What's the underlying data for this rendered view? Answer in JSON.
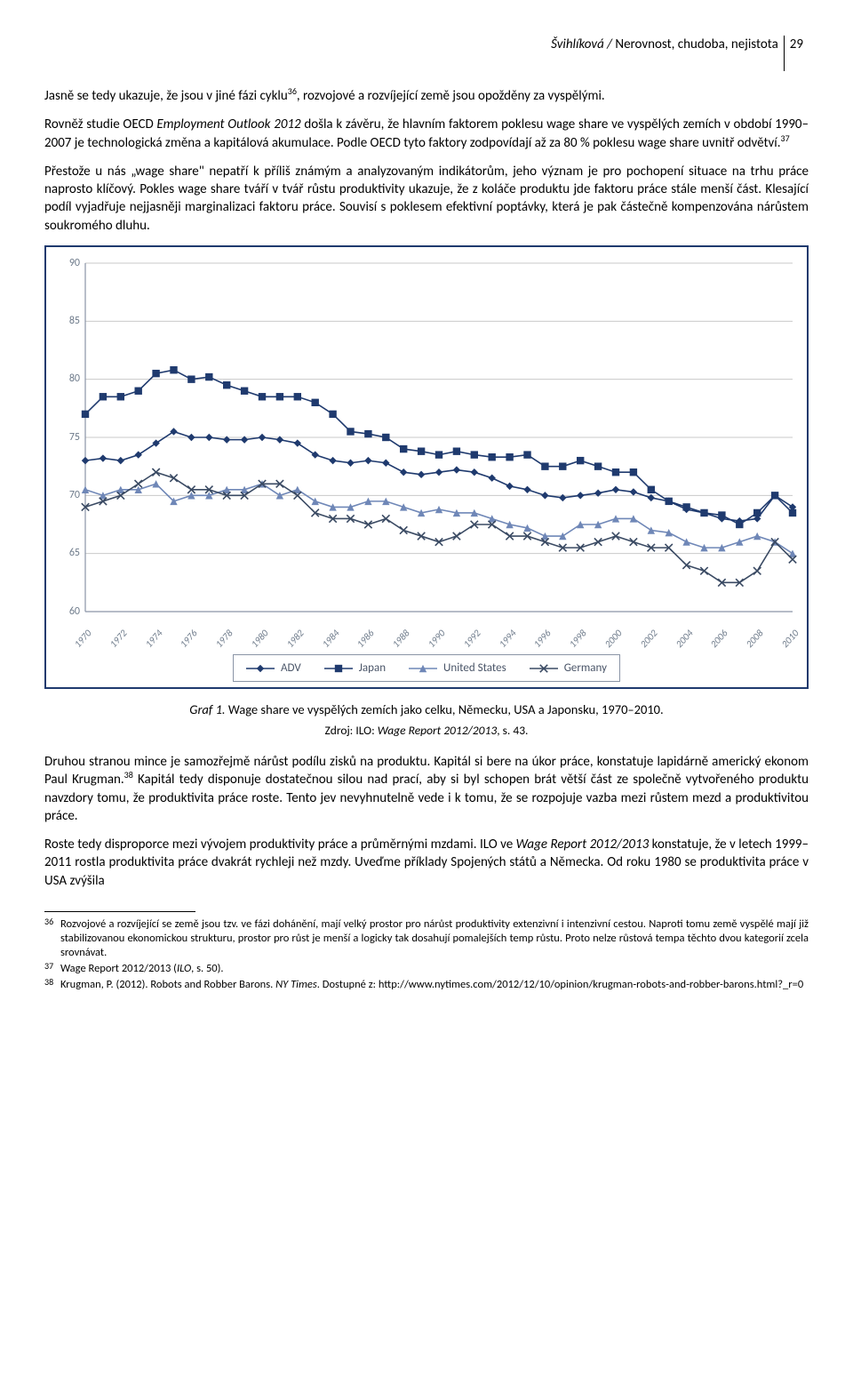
{
  "header": {
    "running_head_author": "Švihlíková / ",
    "running_head_title": "Nerovnost, chudoba, nejistota",
    "page_number": "29"
  },
  "paragraphs": {
    "p1a": "Jasně se tedy ukazuje, že jsou v jiné fázi cyklu",
    "p1_sup": "36",
    "p1b": ", rozvojové a rozvíjející země jsou opožděny za vyspělými.",
    "p2a": "Rovněž studie OECD ",
    "p2_ital": "Employment Outlook 2012",
    "p2b": " došla k závěru, že hlavním faktorem poklesu wage share ve vyspělých zemích v období 1990–2007 je technologická změna a kapitálová akumulace. Podle OECD tyto faktory zodpovídají až za 80 % poklesu wage share uvnitř odvětví.",
    "p2_sup": "37",
    "p3": "Přestože u nás „wage share\" nepatří k příliš známým a analyzovaným indikátorům, jeho význam je pro pochopení situace na trhu práce naprosto klíčový. Pokles wage share tváří v tvář růstu produktivity ukazuje, že z koláče produktu jde faktoru práce stále menší část. Klesající podíl vyjadřuje nejjasněji marginalizaci faktoru práce. Souvisí s poklesem efektivní poptávky, která je pak částečně kompenzována nárůstem soukromého dluhu.",
    "p4a": "Druhou stranou mince je samozřejmě nárůst podílu zisků na produktu. Kapitál si bere na úkor práce, konstatuje lapidárně americký ekonom Paul Krugman.",
    "p4_sup": "38",
    "p4b": " Kapitál tedy disponuje dostatečnou silou nad prací, aby si byl schopen brát větší část ze společně vytvořeného produktu navzdory tomu, že produktivita práce roste. Tento jev nevyhnutelně vede i k tomu, že se rozpojuje vazba mezi růstem mezd a produktivitou práce.",
    "p5a": "Roste tedy disproporce mezi vývojem produktivity práce a průměrnými mzdami. ILO ve ",
    "p5_ital": "Wage Report 2012/2013",
    "p5b": " konstatuje, že v letech 1999–2011 rostla produktivita práce dvakrát rychleji než mzdy. Uveďme příklady Spojených států a Německa. Od roku 1980 se produktivita práce v USA zvýšila"
  },
  "chart": {
    "type": "line",
    "ylim": [
      60,
      90
    ],
    "ytick_step": 5,
    "yticks": [
      60,
      65,
      70,
      75,
      80,
      85,
      90
    ],
    "xticks": [
      "1970",
      "1972",
      "1974",
      "1976",
      "1978",
      "1980",
      "1982",
      "1984",
      "1986",
      "1988",
      "1990",
      "1992",
      "1994",
      "1996",
      "1998",
      "2000",
      "2002",
      "2004",
      "2006",
      "2008",
      "2010"
    ],
    "years": [
      1970,
      1971,
      1972,
      1973,
      1974,
      1975,
      1976,
      1977,
      1978,
      1979,
      1980,
      1981,
      1982,
      1983,
      1984,
      1985,
      1986,
      1987,
      1988,
      1989,
      1990,
      1991,
      1992,
      1993,
      1994,
      1995,
      1996,
      1997,
      1998,
      1999,
      2000,
      2001,
      2002,
      2003,
      2004,
      2005,
      2006,
      2007,
      2008,
      2009,
      2010
    ],
    "series": [
      {
        "name": "ADV",
        "marker": "diamond",
        "color": "#1f3a6e",
        "values": [
          73.0,
          73.2,
          73.0,
          73.5,
          74.5,
          75.5,
          75.0,
          75.0,
          74.8,
          74.8,
          75.0,
          74.8,
          74.5,
          73.5,
          73.0,
          72.8,
          73.0,
          72.8,
          72.0,
          71.8,
          72.0,
          72.2,
          72.0,
          71.5,
          70.8,
          70.5,
          70.0,
          69.8,
          70.0,
          70.2,
          70.5,
          70.3,
          69.8,
          69.5,
          68.8,
          68.5,
          68.0,
          67.8,
          68.0,
          70.0,
          69.0
        ]
      },
      {
        "name": "Japan",
        "marker": "square",
        "color": "#1f3a6e",
        "values": [
          77.0,
          78.5,
          78.5,
          79.0,
          80.5,
          80.8,
          80.0,
          80.2,
          79.5,
          79.0,
          78.5,
          78.5,
          78.5,
          78.0,
          77.0,
          75.5,
          75.3,
          75.0,
          74.0,
          73.8,
          73.5,
          73.8,
          73.5,
          73.3,
          73.3,
          73.5,
          72.5,
          72.5,
          73.0,
          72.5,
          72.0,
          72.0,
          70.5,
          69.5,
          69.0,
          68.5,
          68.3,
          67.5,
          68.5,
          70.0,
          68.5
        ]
      },
      {
        "name": "United States",
        "marker": "triangle",
        "color": "#6f87b7",
        "values": [
          70.5,
          70.0,
          70.5,
          70.5,
          71.0,
          69.5,
          70.0,
          70.0,
          70.5,
          70.5,
          71.0,
          70.0,
          70.5,
          69.5,
          69.0,
          69.0,
          69.5,
          69.5,
          69.0,
          68.5,
          68.8,
          68.5,
          68.5,
          68.0,
          67.5,
          67.2,
          66.5,
          66.5,
          67.5,
          67.5,
          68.0,
          68.0,
          67.0,
          66.8,
          66.0,
          65.5,
          65.5,
          66.0,
          66.5,
          66.0,
          65.0
        ]
      },
      {
        "name": "Germany",
        "marker": "x",
        "color": "#3a4a63",
        "values": [
          69.0,
          69.5,
          70.0,
          71.0,
          72.0,
          71.5,
          70.5,
          70.5,
          70.0,
          70.0,
          71.0,
          71.0,
          70.0,
          68.5,
          68.0,
          68.0,
          67.5,
          68.0,
          67.0,
          66.5,
          66.0,
          66.5,
          67.5,
          67.5,
          66.5,
          66.5,
          66.0,
          65.5,
          65.5,
          66.0,
          66.5,
          66.0,
          65.5,
          65.5,
          64.0,
          63.5,
          62.5,
          62.5,
          63.5,
          66.0,
          64.5
        ]
      }
    ],
    "grid_color": "#c9c9c9",
    "axis_color": "#8a94a6",
    "background_color": "#ffffff",
    "label_fontsize": 12,
    "line_width": 1.6,
    "marker_size": 4.2
  },
  "caption": {
    "label": "Graf 1.",
    "text": " Wage share ve vyspělých zemích jako celku, Německu, USA a Japonsku, 1970–2010."
  },
  "source": {
    "prefix": "Zdroj: ILO: ",
    "ital": "Wage Report 2012/2013",
    "suffix": ", s. 43."
  },
  "footnotes": {
    "f36": "Rozvojové a rozvíjející se země jsou tzv. ve fázi dohánění, mají velký prostor pro nárůst produktivity extenzivní i intenzivní cestou. Naproti tomu země vyspělé mají již stabilizovanou ekonomickou strukturu, prostor pro růst je menší a logicky tak dosahují pomalejších temp růstu. Proto nelze růstová tempa těchto dvou kategorií zcela srovnávat.",
    "f37a": "Wage Report 2012/2013 (",
    "f37_ital": "ILO",
    "f37b": ", s. 50).",
    "f38a": "Krugman, P. (2012). Robots and Robber Barons. ",
    "f38_ital": "NY Times",
    "f38b": ". Dostupné z: http://www.nytimes.com/2012/12/10/opinion/krugman-robots-and-robber-barons.html?_r=0"
  }
}
